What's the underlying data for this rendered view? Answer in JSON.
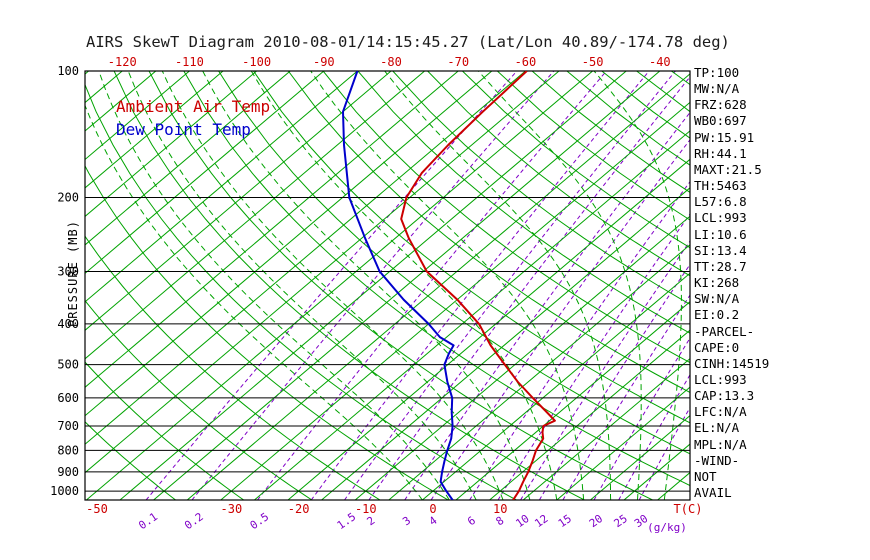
{
  "title": "AIRS SkewT Diagram 2010-08-01/14:15:45.27 (Lat/Lon 40.89/-174.78 deg)",
  "legend": {
    "temp": "Ambient Air Temp",
    "dewpoint": "Dew Point Temp"
  },
  "axes": {
    "pressure_label": "PRESSURE (MB)",
    "pressure_ticks": [
      100,
      200,
      300,
      400,
      500,
      600,
      700,
      800,
      900,
      1000
    ],
    "top_temp_ticks": [
      -120,
      -110,
      -100,
      -90,
      -80,
      -70,
      -60,
      -50,
      -40
    ],
    "bottom_temp_ticks": [
      -50,
      -30,
      -20,
      -10,
      0,
      10
    ],
    "temp_unit": "T(C)",
    "mixing_ratio_labels": [
      0.1,
      0.2,
      0.5,
      1.5,
      2,
      3,
      4,
      6,
      8,
      10,
      12,
      15,
      20,
      25,
      30
    ],
    "mixing_ratio_unit": "(g/kg)"
  },
  "stats": [
    "TP:100",
    "MW:N/A",
    "FRZ:628",
    "WB0:697",
    "PW:15.91",
    "RH:44.1",
    "MAXT:21.5",
    "TH:5463",
    "L57:6.8",
    "LCL:993",
    "LI:10.6",
    "SI:13.4",
    "TT:28.7",
    "KI:268",
    "SW:N/A",
    "EI:0.2",
    "-PARCEL-",
    "CAPE:0",
    "CINH:14519",
    "LCL:993",
    "CAP:13.3",
    "LFC:N/A",
    "EL:N/A",
    "MPL:N/A",
    "-WIND-",
    "NOT",
    "AVAIL"
  ],
  "colors": {
    "red": "#cc0000",
    "blue": "#0000cc",
    "green": "#00a300",
    "purple": "#8000c8",
    "black": "#000000",
    "background": "#ffffff"
  },
  "chart_data": {
    "type": "line",
    "variant": "skew-t-log-p",
    "title": "AIRS SkewT Diagram 2010-08-01/14:15:45.27 (Lat/Lon 40.89/-174.78 deg)",
    "xlabel": "T(C)",
    "ylabel": "PRESSURE (MB)",
    "y_scale": "log",
    "y_range": [
      100,
      1050
    ],
    "y_ticks": [
      100,
      200,
      300,
      400,
      500,
      600,
      700,
      800,
      900,
      1000
    ],
    "top_temp_ticks": [
      -120,
      -110,
      -100,
      -90,
      -80,
      -70,
      -60,
      -50,
      -40
    ],
    "bottom_temp_ticks": [
      -50,
      -30,
      -20,
      -10,
      0,
      10
    ],
    "isotherms": {
      "min": -130,
      "max": 45,
      "step": 5
    },
    "dry_adiabats": {
      "min": -40,
      "max": 190,
      "step": 10
    },
    "moist_adiabats": {
      "min": 0,
      "max": 36,
      "step": 4
    },
    "mixing_ratio_lines": [
      0.1,
      0.2,
      0.5,
      1,
      1.5,
      2,
      3,
      4,
      6,
      8,
      10,
      12,
      15,
      20,
      25,
      30
    ],
    "series": [
      {
        "name": "Ambient Air Temp",
        "color": "#cc0000",
        "units": {
          "pressure": "mb",
          "temp": "C"
        },
        "points": [
          [
            1050,
            13.5
          ],
          [
            1000,
            12.8
          ],
          [
            950,
            11.8
          ],
          [
            900,
            10.8
          ],
          [
            850,
            9.6
          ],
          [
            800,
            8.2
          ],
          [
            750,
            7.2
          ],
          [
            725,
            6.0
          ],
          [
            700,
            5.0
          ],
          [
            680,
            5.8
          ],
          [
            650,
            3.2
          ],
          [
            600,
            -1.5
          ],
          [
            550,
            -6.5
          ],
          [
            500,
            -11.5
          ],
          [
            450,
            -17.0
          ],
          [
            400,
            -22.5
          ],
          [
            350,
            -30.0
          ],
          [
            300,
            -39.5
          ],
          [
            250,
            -48.0
          ],
          [
            225,
            -52.5
          ],
          [
            200,
            -55.5
          ],
          [
            175,
            -57.5
          ],
          [
            150,
            -58.5
          ],
          [
            125,
            -59.2
          ],
          [
            100,
            -59.8
          ]
        ]
      },
      {
        "name": "Dew Point Temp",
        "color": "#0000cc",
        "units": {
          "pressure": "mb",
          "temp": "C"
        },
        "points": [
          [
            1050,
            4.5
          ],
          [
            1000,
            2.0
          ],
          [
            950,
            -0.5
          ],
          [
            900,
            -2.0
          ],
          [
            850,
            -3.5
          ],
          [
            800,
            -5.0
          ],
          [
            750,
            -6.5
          ],
          [
            700,
            -8.5
          ],
          [
            650,
            -11.0
          ],
          [
            600,
            -13.5
          ],
          [
            550,
            -17.0
          ],
          [
            500,
            -20.5
          ],
          [
            470,
            -21.8
          ],
          [
            450,
            -22.5
          ],
          [
            430,
            -26.0
          ],
          [
            400,
            -30.0
          ],
          [
            350,
            -38.0
          ],
          [
            300,
            -46.5
          ],
          [
            250,
            -54.5
          ],
          [
            200,
            -64.0
          ],
          [
            150,
            -74.0
          ],
          [
            125,
            -80.0
          ],
          [
            100,
            -85.0
          ]
        ]
      }
    ]
  }
}
